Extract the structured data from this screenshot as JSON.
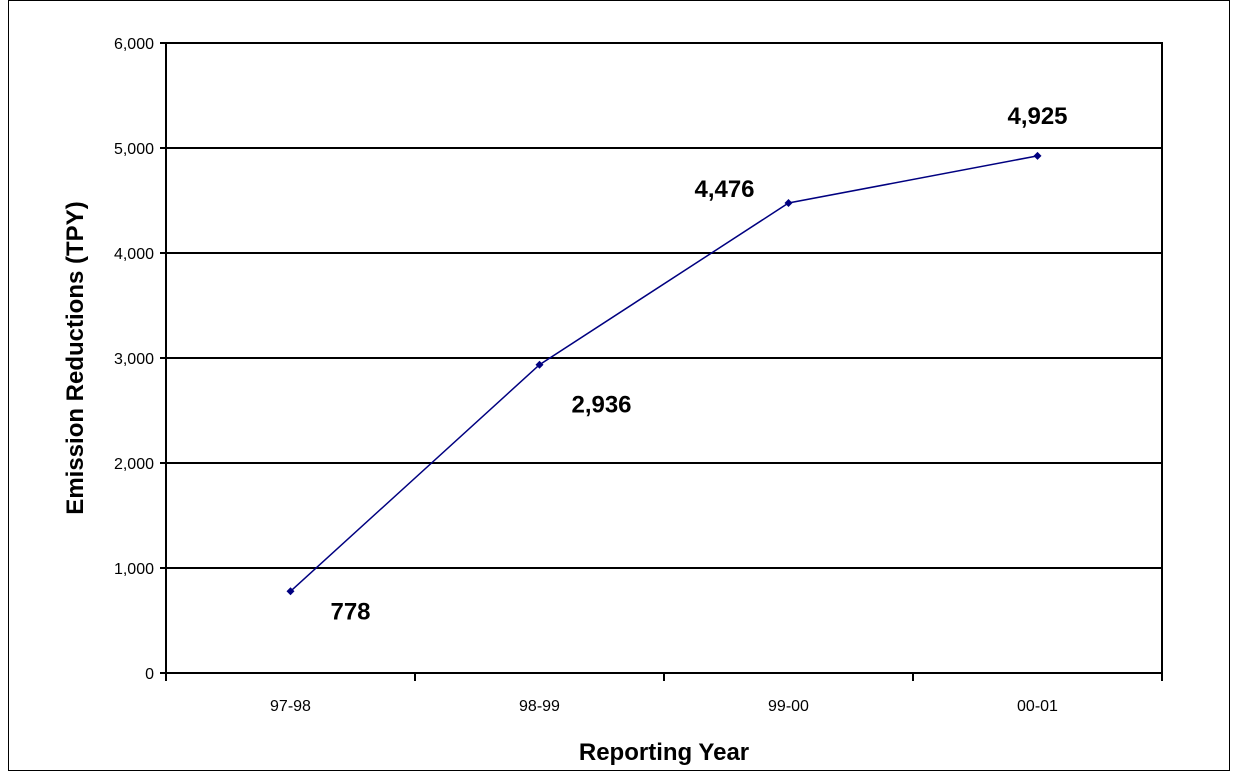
{
  "chart_data": {
    "type": "line",
    "categories": [
      "97-98",
      "98-99",
      "99-00",
      "00-01"
    ],
    "series": [
      {
        "values": [
          778,
          2936,
          4476,
          4925
        ],
        "color": "#000080"
      }
    ],
    "data_labels": [
      "778",
      "2,936",
      "4,476",
      "4,925"
    ],
    "xlabel": "Reporting Year",
    "ylabel": "Emission Reductions  (TPY)",
    "ylim": [
      0,
      6000
    ],
    "yticks": [
      0,
      1000,
      2000,
      3000,
      4000,
      5000,
      6000
    ],
    "ytick_labels": [
      "0",
      "1,000",
      "2,000",
      "3,000",
      "4,000",
      "5,000",
      "6,000"
    ],
    "grid": true,
    "legend": "none"
  }
}
